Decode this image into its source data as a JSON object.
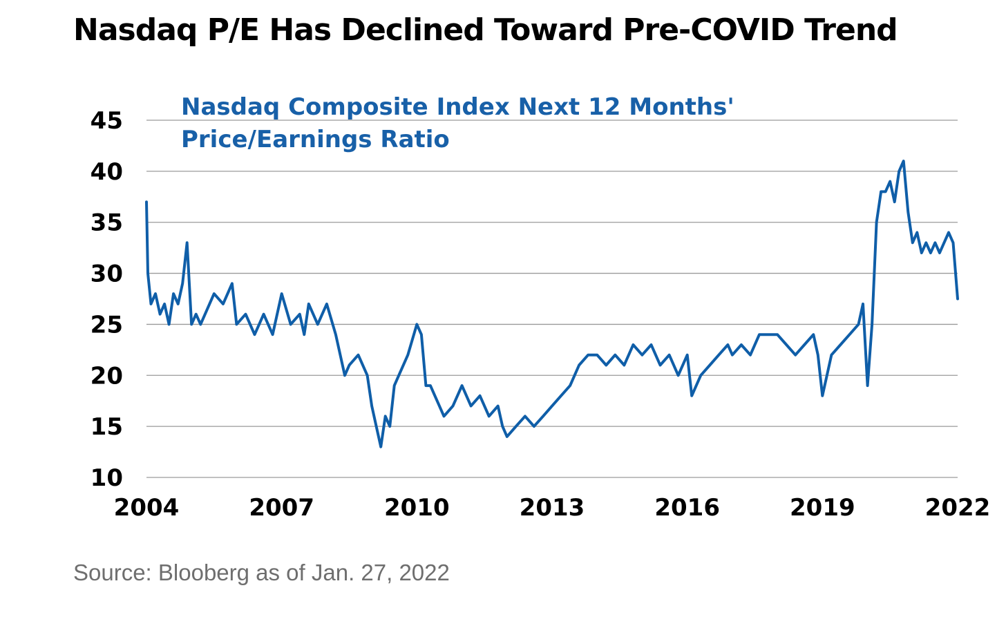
{
  "title": "Nasdaq P/E Has Declined Toward Pre-COVID Trend",
  "source": "Source: Blooberg as of Jan. 27, 2022",
  "colors": {
    "line": "#0f5ea8",
    "inner_title": "#1860a8",
    "grid": "#9a9a9a",
    "text": "#000000",
    "source": "#6e6e6e"
  },
  "chart_data": {
    "type": "line",
    "title": "Nasdaq Composite Index Next 12 Months' Price/Earnings Ratio",
    "title_lines": [
      "Nasdaq Composite Index Next 12 Months'",
      "Price/Earnings Ratio"
    ],
    "xlabel": "",
    "ylabel": "",
    "xlim": [
      2004,
      2022
    ],
    "ylim": [
      10,
      45
    ],
    "x_ticks": [
      2004,
      2007,
      2010,
      2013,
      2016,
      2019,
      2022
    ],
    "x_tick_labels": [
      "2004",
      "2007",
      "2010",
      "2013",
      "2016",
      "2019",
      "2022"
    ],
    "y_ticks": [
      10,
      15,
      20,
      25,
      30,
      35,
      40,
      45
    ],
    "y_tick_labels": [
      "10",
      "15",
      "20",
      "25",
      "30",
      "35",
      "40",
      "45"
    ],
    "grid": "horizontal",
    "legend": "none",
    "series": [
      {
        "x": [
          2004.0,
          2004.03,
          2004.1,
          2004.2,
          2004.3,
          2004.4,
          2004.5,
          2004.6,
          2004.7,
          2004.8,
          2004.9,
          2005.0,
          2005.1,
          2005.2,
          2005.3,
          2005.5,
          2005.7,
          2005.9,
          2006.0,
          2006.2,
          2006.4,
          2006.5,
          2006.6,
          2006.8,
          2007.0,
          2007.2,
          2007.4,
          2007.5,
          2007.6,
          2007.8,
          2008.0,
          2008.2,
          2008.4,
          2008.5,
          2008.7,
          2008.9,
          2009.0,
          2009.1,
          2009.2,
          2009.3,
          2009.4,
          2009.5,
          2009.6,
          2009.8,
          2010.0,
          2010.1,
          2010.2,
          2010.3,
          2010.4,
          2010.6,
          2010.8,
          2011.0,
          2011.2,
          2011.4,
          2011.6,
          2011.8,
          2011.9,
          2012.0,
          2012.2,
          2012.4,
          2012.6,
          2012.8,
          2013.0,
          2013.2,
          2013.4,
          2013.6,
          2013.8,
          2014.0,
          2014.2,
          2014.4,
          2014.6,
          2014.8,
          2015.0,
          2015.2,
          2015.4,
          2015.6,
          2015.8,
          2016.0,
          2016.1,
          2016.3,
          2016.5,
          2016.7,
          2016.9,
          2017.0,
          2017.2,
          2017.4,
          2017.6,
          2017.8,
          2018.0,
          2018.2,
          2018.4,
          2018.6,
          2018.8,
          2018.9,
          2019.0,
          2019.2,
          2019.4,
          2019.6,
          2019.8,
          2019.9,
          2020.0,
          2020.1,
          2020.2,
          2020.3,
          2020.4,
          2020.5,
          2020.6,
          2020.7,
          2020.8,
          2020.9,
          2021.0,
          2021.1,
          2021.2,
          2021.3,
          2021.4,
          2021.5,
          2021.6,
          2021.7,
          2021.8,
          2021.9,
          2022.0
        ],
        "values": [
          37,
          30,
          27,
          28,
          26,
          27,
          25,
          28,
          27,
          29,
          33,
          25,
          26,
          25,
          26,
          28,
          27,
          29,
          25,
          26,
          24,
          25,
          26,
          24,
          28,
          25,
          26,
          24,
          27,
          25,
          27,
          24,
          20,
          21,
          22,
          20,
          17,
          15,
          13,
          16,
          15,
          19,
          20,
          22,
          25,
          24,
          19,
          19,
          18,
          16,
          17,
          19,
          17,
          18,
          16,
          17,
          15,
          14,
          15,
          16,
          15,
          16,
          17,
          18,
          19,
          21,
          22,
          22,
          21,
          22,
          21,
          23,
          22,
          23,
          21,
          22,
          20,
          22,
          18,
          20,
          21,
          22,
          23,
          22,
          23,
          22,
          24,
          24,
          24,
          23,
          22,
          23,
          24,
          22,
          18,
          22,
          23,
          24,
          25,
          27,
          19,
          25,
          35,
          38,
          38,
          39,
          37,
          40,
          41,
          36,
          33,
          34,
          32,
          33,
          32,
          33,
          32,
          33,
          34,
          33,
          27.5
        ]
      }
    ]
  }
}
